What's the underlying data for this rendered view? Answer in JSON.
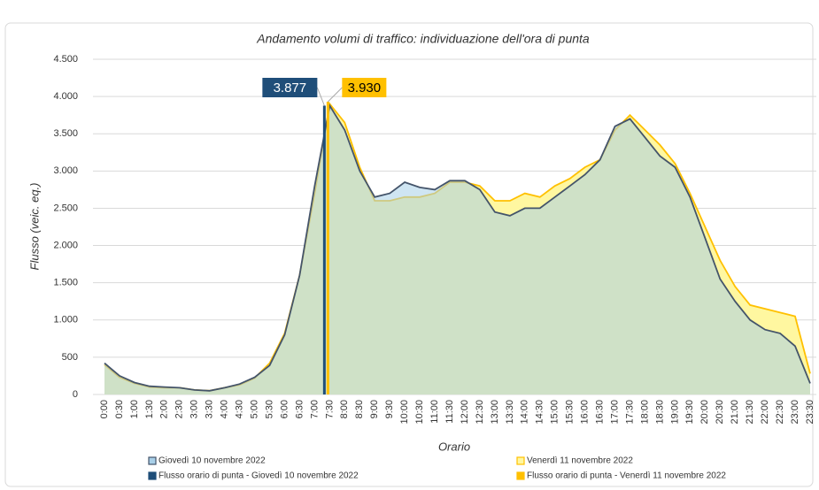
{
  "chart_data": {
    "type": "area",
    "title": "Andamento volumi di traffico: individuazione dell'ora di punta",
    "x_label": "Orario",
    "y_label": "Flusso (veic. eq.)",
    "categories": [
      "0:00",
      "0:30",
      "1:00",
      "1:30",
      "2:00",
      "2:30",
      "3:00",
      "3:30",
      "4:00",
      "4:30",
      "5:00",
      "5:30",
      "6:00",
      "6:30",
      "7:00",
      "7:30",
      "8:00",
      "8:30",
      "9:00",
      "9:30",
      "10:00",
      "10:30",
      "11:00",
      "11:30",
      "12:00",
      "12:30",
      "13:00",
      "13:30",
      "14:00",
      "14:30",
      "15:00",
      "15:30",
      "16:00",
      "16:30",
      "17:00",
      "17:30",
      "18:00",
      "18:30",
      "19:00",
      "19:30",
      "20:00",
      "20:30",
      "21:00",
      "21:30",
      "22:00",
      "22:30",
      "23:00",
      "23:30"
    ],
    "series": [
      {
        "name": "Venerdì 11 novembre 2022",
        "color": "#ffc000",
        "fill": "#fff7a0",
        "values": [
          400,
          230,
          150,
          100,
          90,
          90,
          60,
          50,
          90,
          130,
          220,
          420,
          820,
          1600,
          2700,
          3900,
          3650,
          3050,
          2600,
          2600,
          2650,
          2650,
          2700,
          2850,
          2850,
          2800,
          2600,
          2600,
          2700,
          2650,
          2800,
          2900,
          3050,
          3150,
          3550,
          3750,
          3550,
          3350,
          3100,
          2700,
          2250,
          1800,
          1450,
          1200,
          1150,
          1100,
          1050,
          280
        ]
      },
      {
        "name": "Giovedì 10 novembre 2022",
        "color": "#44546a",
        "fill": "#a8cfe8",
        "values": [
          420,
          250,
          160,
          110,
          100,
          90,
          60,
          50,
          90,
          140,
          230,
          390,
          800,
          1600,
          2800,
          3877,
          3550,
          3000,
          2650,
          2700,
          2850,
          2780,
          2750,
          2870,
          2870,
          2750,
          2450,
          2400,
          2500,
          2500,
          2650,
          2800,
          2950,
          3150,
          3600,
          3700,
          3450,
          3200,
          3050,
          2650,
          2100,
          1550,
          1250,
          1000,
          870,
          820,
          650,
          150
        ]
      }
    ],
    "peaks": [
      {
        "name": "Flusso orario di punta - Giovedì 10 novembre 2022",
        "color": "#1f4e79",
        "x": "7:30",
        "value": 3877,
        "label": "3.877"
      },
      {
        "name": "Flusso orario di punta - Venerdì 11 novembre 2022",
        "color": "#ffc000",
        "x": "7:30",
        "value": 3930,
        "label": "3.930"
      }
    ],
    "ylim": [
      0,
      4500
    ],
    "yticks": [
      0,
      500,
      {
        "value": 1000,
        "label": "1.000"
      },
      {
        "value": 1500,
        "label": "1.500"
      },
      {
        "value": 2000,
        "label": "2.000"
      },
      {
        "value": 2500,
        "label": "2.500"
      },
      {
        "value": 3000,
        "label": "3.000"
      },
      {
        "value": 3500,
        "label": "3.500"
      },
      {
        "value": 4000,
        "label": "4.000"
      },
      {
        "value": 4500,
        "label": "4.500"
      }
    ],
    "grid": true
  }
}
